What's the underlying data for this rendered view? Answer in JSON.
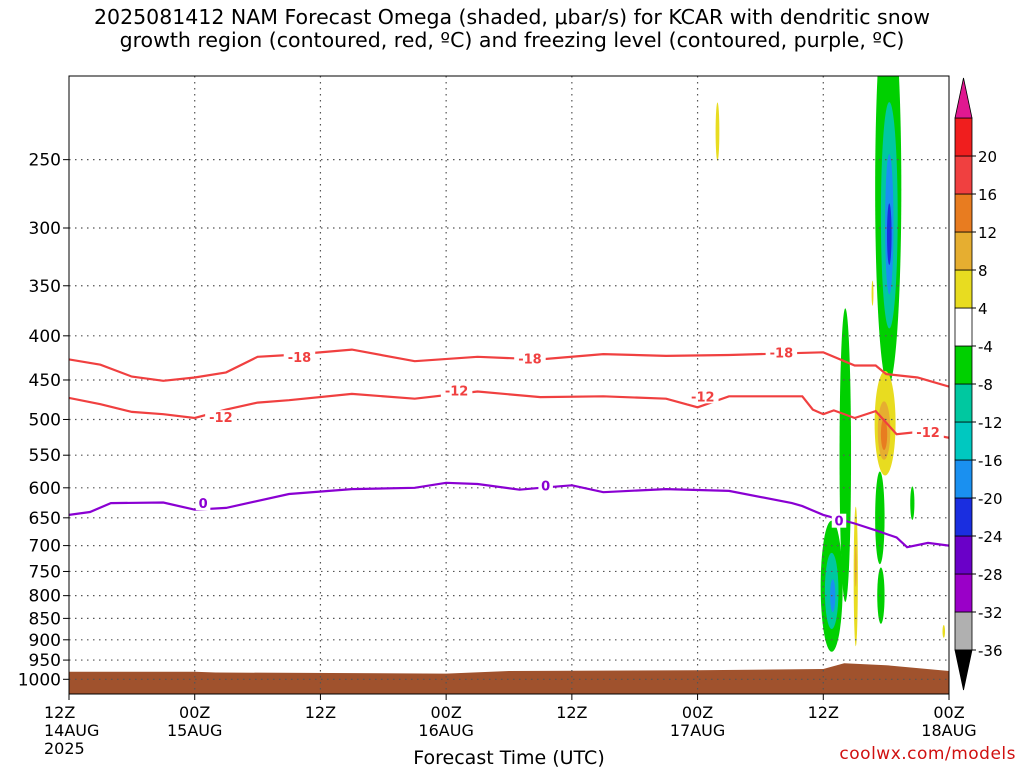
{
  "chart": {
    "title_line1": "2025081412 NAM Forecast Omega (shaded, μbar/s) for KCAR with dendritic snow",
    "title_line2": "growth region (contoured, red, ºC) and freezing level (contoured, purple, ºC)",
    "watermark": "coolwx.com/models"
  },
  "chart_data": {
    "type": "time-height cross section",
    "title": "2025081412 NAM Forecast Omega (shaded, μbar/s) for KCAR with dendritic snow growth region (contoured, red, ºC) and freezing level (contoured, purple, ºC)",
    "xlabel": "Forecast Time (UTC)",
    "ylabel": "",
    "x_range_hours": [
      0,
      84
    ],
    "y_axis": {
      "scale": "log-pressure",
      "reversed": true,
      "range_mb": [
        1040,
        200
      ]
    },
    "grid": true,
    "x_ticks": [
      {
        "h": 0,
        "lines": [
          "12Z",
          "14AUG",
          "2025"
        ]
      },
      {
        "h": 12,
        "lines": [
          "00Z",
          "15AUG"
        ]
      },
      {
        "h": 24,
        "lines": [
          "12Z"
        ]
      },
      {
        "h": 36,
        "lines": [
          "00Z",
          "16AUG"
        ]
      },
      {
        "h": 48,
        "lines": [
          "12Z"
        ]
      },
      {
        "h": 60,
        "lines": [
          "00Z",
          "17AUG"
        ]
      },
      {
        "h": 72,
        "lines": [
          "12Z"
        ]
      },
      {
        "h": 84,
        "lines": [
          "00Z",
          "18AUG"
        ]
      }
    ],
    "y_ticks": [
      250,
      300,
      350,
      400,
      450,
      500,
      550,
      600,
      650,
      700,
      750,
      800,
      850,
      900,
      950,
      1000
    ],
    "colorbar": {
      "position": "right",
      "colors": [
        "#b0b0b0",
        "#9a00c8",
        "#6a00c8",
        "#1a2ee0",
        "#1a90f0",
        "#00c8c0",
        "#00c8a0",
        "#00d000",
        "#ffffff",
        "#e8dc20",
        "#e6ae30",
        "#e87c20",
        "#f04040",
        "#f01e1e"
      ],
      "labels": [
        "-36",
        "-32",
        "-28",
        "-24",
        "-20",
        "-16",
        "-12",
        "-8",
        "-4",
        "4",
        "8",
        "12",
        "16",
        "20"
      ],
      "under_color": "#000000",
      "over_color": "#e01890"
    },
    "terrain": {
      "color": "#a0522d",
      "points": [
        [
          0,
          980
        ],
        [
          12,
          980
        ],
        [
          14,
          982
        ],
        [
          36,
          985
        ],
        [
          42,
          978
        ],
        [
          60,
          976
        ],
        [
          72,
          973
        ],
        [
          74,
          958
        ],
        [
          78,
          963
        ],
        [
          84,
          978
        ]
      ]
    },
    "series": [
      {
        "name": "-18",
        "color": "#f04040",
        "points": [
          [
            0,
            426
          ],
          [
            3,
            432
          ],
          [
            6,
            446
          ],
          [
            9,
            451
          ],
          [
            12,
            447
          ],
          [
            15,
            441
          ],
          [
            18,
            423
          ],
          [
            21,
            421
          ],
          [
            27,
            415
          ],
          [
            33,
            428
          ],
          [
            39,
            423
          ],
          [
            45,
            426
          ],
          [
            51,
            420
          ],
          [
            57,
            422
          ],
          [
            63,
            421
          ],
          [
            69,
            419
          ],
          [
            72,
            418
          ],
          [
            75,
            433
          ],
          [
            77,
            433
          ],
          [
            78,
            443
          ],
          [
            81,
            447
          ],
          [
            84,
            458
          ]
        ],
        "labels": [
          [
            22,
            423
          ],
          [
            44,
            425
          ],
          [
            68,
            418
          ]
        ]
      },
      {
        "name": "-12",
        "color": "#f04040",
        "points": [
          [
            0,
            472
          ],
          [
            3,
            480
          ],
          [
            6,
            490
          ],
          [
            9,
            493
          ],
          [
            12,
            498
          ],
          [
            15,
            487
          ],
          [
            18,
            478
          ],
          [
            21,
            475
          ],
          [
            27,
            467
          ],
          [
            33,
            473
          ],
          [
            39,
            464
          ],
          [
            45,
            471
          ],
          [
            51,
            470
          ],
          [
            57,
            473
          ],
          [
            60,
            484
          ],
          [
            63,
            470
          ],
          [
            69,
            470
          ],
          [
            70,
            470
          ],
          [
            71,
            487
          ],
          [
            72,
            493
          ],
          [
            73,
            488
          ],
          [
            75,
            498
          ],
          [
            77,
            489
          ],
          [
            79,
            520
          ],
          [
            81,
            517
          ],
          [
            84,
            525
          ]
        ],
        "labels": [
          [
            14.5,
            497
          ],
          [
            37,
            463
          ],
          [
            60.5,
            470
          ],
          [
            82,
            517
          ]
        ]
      },
      {
        "name": "0",
        "color": "#8a00d2",
        "points": [
          [
            0,
            645
          ],
          [
            2,
            640
          ],
          [
            4,
            625
          ],
          [
            9,
            624
          ],
          [
            12,
            636
          ],
          [
            15,
            633
          ],
          [
            21,
            610
          ],
          [
            27,
            602
          ],
          [
            33,
            600
          ],
          [
            36,
            592
          ],
          [
            39,
            594
          ],
          [
            43,
            603
          ],
          [
            45,
            600
          ],
          [
            48,
            596
          ],
          [
            51,
            607
          ],
          [
            57,
            602
          ],
          [
            63,
            605
          ],
          [
            69,
            625
          ],
          [
            70,
            630
          ],
          [
            72,
            645
          ],
          [
            75,
            660
          ],
          [
            77,
            672
          ],
          [
            79,
            685
          ],
          [
            80,
            703
          ],
          [
            82,
            695
          ],
          [
            84,
            700
          ]
        ],
        "labels": [
          [
            12.8,
            625
          ],
          [
            45.5,
            596
          ],
          [
            73.5,
            655
          ]
        ]
      }
    ],
    "shaded_regions": [
      {
        "color": "#00d000",
        "x": 78.2,
        "y": 270,
        "rx": 1.25,
        "ry": 130
      },
      {
        "color": "#00c8a0",
        "x": 78.3,
        "y": 290,
        "rx": 0.8,
        "ry": 85
      },
      {
        "color": "#1a90f0",
        "x": 78.3,
        "y": 297,
        "rx": 0.4,
        "ry": 55
      },
      {
        "color": "#1a2ee0",
        "x": 78.3,
        "y": 305,
        "rx": 0.22,
        "ry": 25
      },
      {
        "color": "#e8dc20",
        "x": 77.9,
        "y": 505,
        "rx": 1.0,
        "ry": 70
      },
      {
        "color": "#e6ae30",
        "x": 77.8,
        "y": 515,
        "rx": 0.6,
        "ry": 40
      },
      {
        "color": "#e87c20",
        "x": 77.8,
        "y": 520,
        "rx": 0.3,
        "ry": 22
      },
      {
        "color": "#00d000",
        "x": 74.1,
        "y": 550,
        "rx": 0.55,
        "ry": 205
      },
      {
        "color": "#00d000",
        "x": 72.8,
        "y": 780,
        "rx": 1.05,
        "ry": 135
      },
      {
        "color": "#00c8a0",
        "x": 72.8,
        "y": 790,
        "rx": 0.65,
        "ry": 80
      },
      {
        "color": "#1a90f0",
        "x": 72.9,
        "y": 800,
        "rx": 0.25,
        "ry": 35
      },
      {
        "color": "#00d000",
        "x": 77.5,
        "y": 800,
        "rx": 0.35,
        "ry": 60
      },
      {
        "color": "#00d000",
        "x": 77.4,
        "y": 650,
        "rx": 0.45,
        "ry": 80
      },
      {
        "color": "#00d000",
        "x": 80.5,
        "y": 625,
        "rx": 0.2,
        "ry": 28
      },
      {
        "color": "#e8dc20",
        "x": 75.1,
        "y": 760,
        "rx": 0.2,
        "ry": 140
      },
      {
        "color": "#e6ae30",
        "x": 75.1,
        "y": 740,
        "rx": 0.09,
        "ry": 40
      },
      {
        "color": "#e8dc20",
        "x": 61.9,
        "y": 232,
        "rx": 0.18,
        "ry": 18
      },
      {
        "color": "#e8dc20",
        "x": 76.7,
        "y": 357,
        "rx": 0.09,
        "ry": 12
      },
      {
        "color": "#e8dc20",
        "x": 83.5,
        "y": 880,
        "rx": 0.12,
        "ry": 15
      }
    ]
  }
}
